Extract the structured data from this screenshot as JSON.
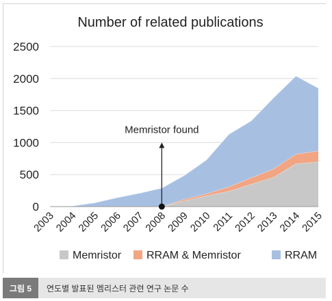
{
  "chart_data": {
    "type": "area",
    "title": "Number of related publications",
    "x": [
      "2003",
      "2004",
      "2005",
      "2006",
      "2007",
      "2008",
      "2009",
      "2010",
      "2011",
      "2012",
      "2013",
      "2014",
      "2015"
    ],
    "ylim": [
      0,
      2500
    ],
    "yticks": [
      "0",
      "500",
      "1000",
      "1500",
      "2000",
      "2500"
    ],
    "stacked": true,
    "series": [
      {
        "name": "Memristor",
        "color": "#c8c8c8",
        "values": [
          0,
          0,
          0,
          0,
          0,
          0,
          90,
          170,
          240,
          350,
          460,
          670,
          700
        ]
      },
      {
        "name": "RRAM & Memristor",
        "color": "#f2a583",
        "values": [
          0,
          0,
          0,
          0,
          0,
          0,
          25,
          30,
          70,
          100,
          130,
          150,
          170
        ]
      },
      {
        "name": "RRAM",
        "color": "#a7c0e2",
        "values": [
          5,
          10,
          60,
          140,
          210,
          290,
          370,
          530,
          820,
          890,
          1110,
          1220,
          980
        ]
      }
    ],
    "grid": true,
    "legend_position": "bottom",
    "annotation": {
      "text": "Memristor found",
      "x": "2008",
      "y": 0,
      "arrow_to": 1000
    }
  },
  "caption": {
    "label": "그림 5",
    "text": "연도별 발표된 멤리스터 관련 연구 논문 수"
  }
}
